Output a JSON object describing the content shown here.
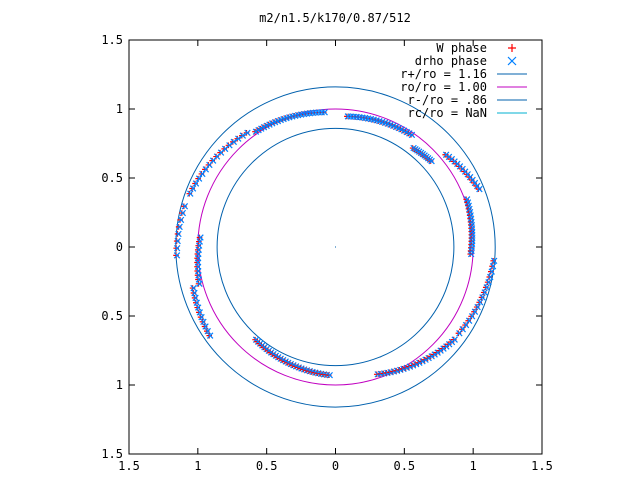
{
  "chart_data": {
    "type": "scatter",
    "title": "m2/n1.5/k170/0.87/512",
    "xlabel": "",
    "ylabel": "",
    "xlim": [
      -1.5,
      1.5
    ],
    "ylim": [
      -1.5,
      1.5
    ],
    "x_ticks": [
      -1.5,
      -1,
      -0.5,
      0,
      0.5,
      1,
      1.5
    ],
    "y_ticks": [
      -1.5,
      -1,
      -0.5,
      0,
      0.5,
      1,
      1.5
    ],
    "x_tick_labels": [
      "1.5",
      "1",
      "0.5",
      "0",
      "0.5",
      "1",
      "1.5"
    ],
    "y_tick_labels": [
      "1.5",
      "1",
      "0.5",
      "0",
      "0.5",
      "1",
      "1.5"
    ],
    "grid": false,
    "legend_position": "top-right",
    "legend": [
      {
        "label": "W phase",
        "marker": "plus",
        "color": "#ff0000"
      },
      {
        "label": "drho phase",
        "marker": "cross",
        "color": "#0080ff"
      },
      {
        "label": "r+/ro = 1.16",
        "line": true,
        "color": "#0060ad"
      },
      {
        "label": "ro/ro = 1.00",
        "line": true,
        "color": "#c000c0"
      },
      {
        "label": "r-/ro = .86",
        "line": true,
        "color": "#0060ad"
      },
      {
        "label": "rc/ro = NaN",
        "line": true,
        "color": "#00b0d0"
      }
    ],
    "circles": [
      {
        "name": "r+/ro = 1.16",
        "r": 1.16,
        "color": "#0060ad"
      },
      {
        "name": "ro/ro = 1.00",
        "r": 1.0,
        "color": "#c000c0"
      },
      {
        "name": "r-/ro = .86",
        "r": 0.86,
        "color": "#0060ad"
      }
    ],
    "arcs": [
      {
        "from_deg": 95,
        "to_deg": 125,
        "r_start": 0.98,
        "r_end": 1.02,
        "n": 25
      },
      {
        "from_deg": 128,
        "to_deg": 160,
        "r_start": 1.05,
        "r_end": 1.13,
        "n": 16
      },
      {
        "from_deg": 165,
        "to_deg": 183,
        "r_start": 1.14,
        "r_end": 1.16,
        "n": 8
      },
      {
        "from_deg": 176,
        "to_deg": 195,
        "r_start": 0.99,
        "r_end": 1.03,
        "n": 12
      },
      {
        "from_deg": 196,
        "to_deg": 215,
        "r_start": 1.08,
        "r_end": 1.12,
        "n": 11
      },
      {
        "from_deg": 229,
        "to_deg": 267,
        "r_start": 0.89,
        "r_end": 0.93,
        "n": 30
      },
      {
        "from_deg": 288,
        "to_deg": 322,
        "r_start": 0.97,
        "r_end": 1.09,
        "n": 26
      },
      {
        "from_deg": 325,
        "to_deg": 355,
        "r_start": 1.09,
        "r_end": 1.15,
        "n": 16
      },
      {
        "from_deg": 357,
        "to_deg": 20,
        "r_start": 0.98,
        "r_end": 1.01,
        "n": 18
      },
      {
        "from_deg": 22,
        "to_deg": 40,
        "r_start": 1.12,
        "r_end": 1.04,
        "n": 14
      },
      {
        "from_deg": 42,
        "to_deg": 52,
        "r_start": 0.93,
        "r_end": 0.91,
        "n": 11
      },
      {
        "from_deg": 56,
        "to_deg": 85,
        "r_start": 0.98,
        "r_end": 0.95,
        "n": 24
      }
    ],
    "point_offsets": {
      "drho_phase_dx": 0.007,
      "drho_phase_dy": 0.0
    }
  }
}
